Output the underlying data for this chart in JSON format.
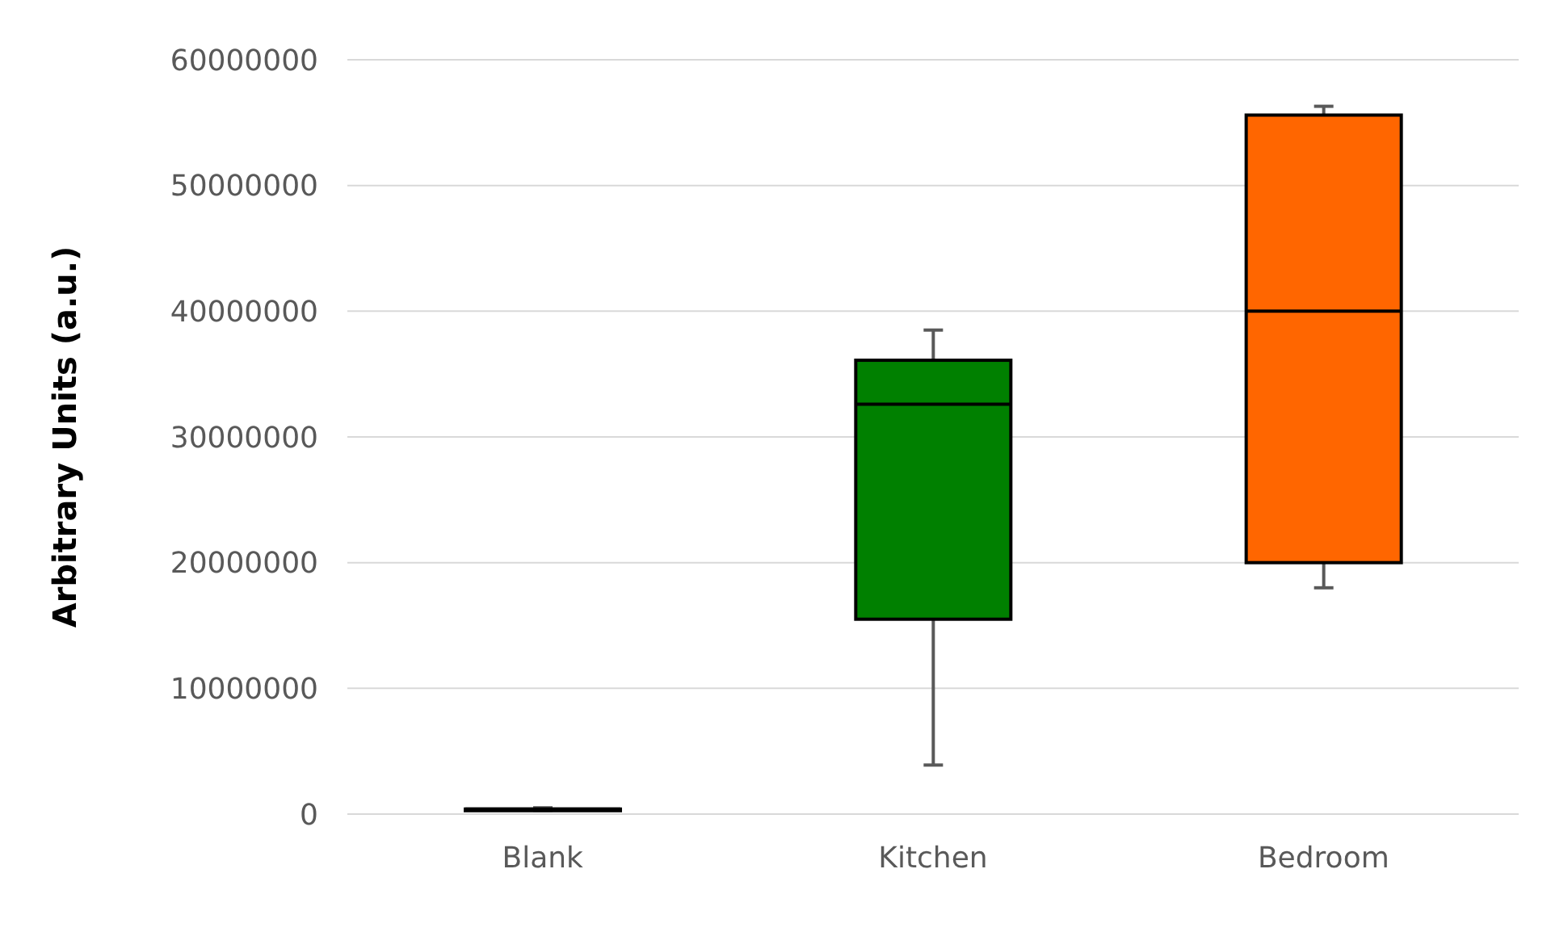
{
  "chart_data": {
    "type": "box",
    "ylabel": "Arbitrary Units (a.u.)",
    "categories": [
      "Blank",
      "Kitchen",
      "Bedroom"
    ],
    "colors": [
      "#000000",
      "#008000",
      "#ff6600"
    ],
    "boxes": [
      {
        "low": 300000,
        "q1": 400000,
        "median": 400000,
        "q3": 400000,
        "high": 500000
      },
      {
        "low": 3900000,
        "q1": 15500000,
        "median": 32600000,
        "q3": 36100000,
        "high": 38500000
      },
      {
        "low": 18000000,
        "q1": 20000000,
        "median": 40000000,
        "q3": 55600000,
        "high": 56300000
      }
    ],
    "ylim": [
      0,
      60000000
    ],
    "yticks": [
      0,
      10000000,
      20000000,
      30000000,
      40000000,
      50000000,
      60000000
    ],
    "grid": "y"
  }
}
